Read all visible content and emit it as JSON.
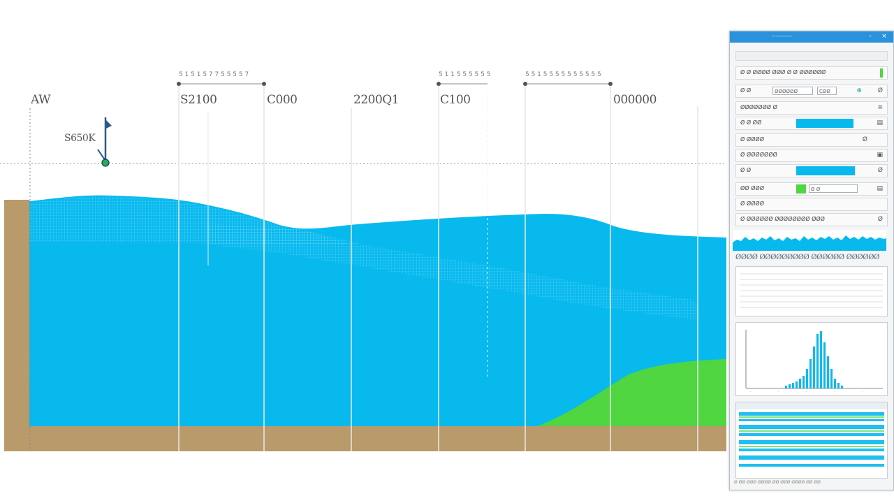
{
  "profile": {
    "depth_labels": [
      "AW",
      "S2100",
      "C000",
      "2200Q1",
      "C100",
      "000000"
    ],
    "range_captions": [
      "5 1 5 1 5 7 7 5 5 5 5 7",
      "5 1 1 5 5 5 5 5 5",
      "5 5 1 5 5 5 5 5 5 5 5 5 5"
    ],
    "marker_label": "S650K",
    "colors": {
      "water": "#08b9ee",
      "water_light": "#3fd0f5",
      "sediment": "#b99a6a",
      "vegetation": "#4fd640",
      "marker": "#2a5a8a",
      "marker_base": "#22b05a"
    }
  },
  "panel": {
    "title": "----------",
    "rows": [
      {
        "label": "Ø Ø ØØØØ ØØØ Ø Ø ØØØØØØ",
        "icon": "▪"
      },
      {
        "label": "Ø Ø",
        "field1": "ØØØØØØ",
        "field2": "CØØ",
        "icon": "⊕"
      },
      {
        "label": "ØØØØØØØ Ø",
        "icon": "≡"
      },
      {
        "label": "Ø Ø ØØ",
        "icon": "▤"
      },
      {
        "label": "Ø ØØØØ",
        "icon": "Ø"
      },
      {
        "label": "Ø ØØØØØØØ",
        "icon": "▣"
      },
      {
        "label": "Ø Ø",
        "icon": "Ø"
      },
      {
        "label": "ØØ ØØØ",
        "field1": "Ø Ø",
        "icon": "▤"
      },
      {
        "label": "Ø ØØØØ",
        "icon": ""
      },
      {
        "label": "Ø ØØØØØØ ØØØØØØØØ ØØØ",
        "icon": "Ø"
      }
    ],
    "section_title": "ØØØØ ØØØØØØØØØ ØØØØØØ ØØØØØØ",
    "footer": "Ø ØØ ØØØ ØØØØ ØØ ØØØ ØØØØ ØØ ØØ"
  }
}
